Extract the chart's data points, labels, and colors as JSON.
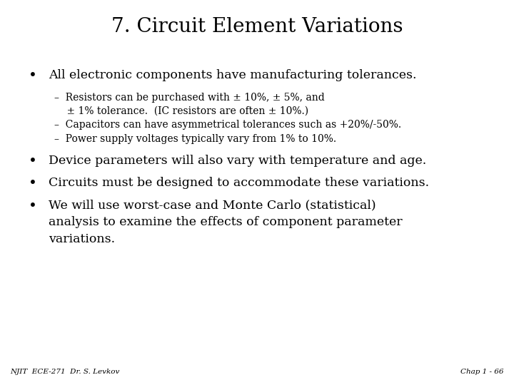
{
  "title": "7. Circuit Element Variations",
  "background_color": "#ffffff",
  "text_color": "#000000",
  "title_fontsize": 20,
  "body_fontsize": 12.5,
  "sub_fontsize": 10.0,
  "footer_fontsize": 7.5,
  "bullet1": "All electronic components have manufacturing tolerances.",
  "sub1_line1": "–  Resistors can be purchased with ± 10%, ± 5%, and",
  "sub1_line2": "    ± 1% tolerance.  (IC resistors are often ± 10%.)",
  "sub2": "–  Capacitors can have asymmetrical tolerances such as +20%/-50%.",
  "sub3": "–  Power supply voltages typically vary from 1% to 10%.",
  "bullet2": "Device parameters will also vary with temperature and age.",
  "bullet3": "Circuits must be designed to accommodate these variations.",
  "bullet4_line1": "We will use worst-case and Monte Carlo (statistical)",
  "bullet4_line2": "analysis to examine the effects of component parameter",
  "bullet4_line3": "variations.",
  "footer_left": "NJIT  ECE-271  Dr. S. Levkov",
  "footer_right": "Chap 1 - 66",
  "font_family": "DejaVu Serif"
}
